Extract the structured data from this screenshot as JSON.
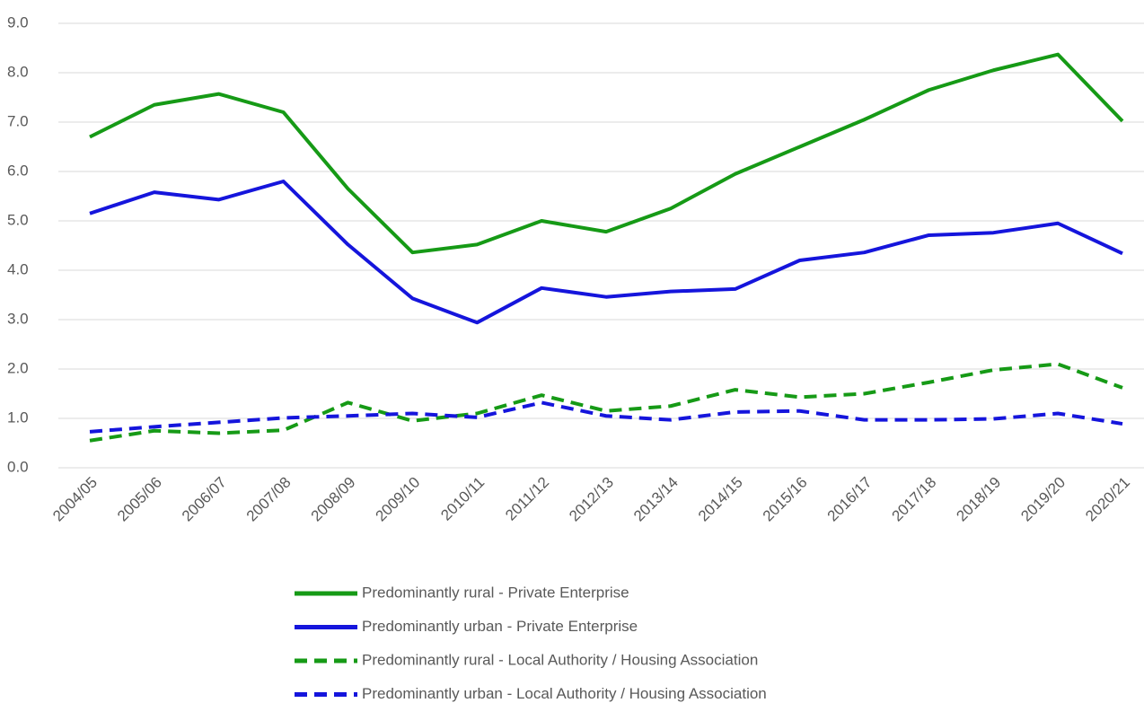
{
  "chart_data": {
    "type": "line",
    "categories": [
      "2004/05",
      "2005/06",
      "2006/07",
      "2007/08",
      "2008/09",
      "2009/10",
      "2010/11",
      "2011/12",
      "2012/13",
      "2013/14",
      "2014/15",
      "2015/16",
      "2016/17",
      "2017/18",
      "2018/19",
      "2019/20",
      "2020/21"
    ],
    "series": [
      {
        "name": "Predominantly rural - Private Enterprise",
        "color": "#169a16",
        "style": "solid",
        "values": [
          6.7,
          7.35,
          7.57,
          7.2,
          5.65,
          4.36,
          4.52,
          5.0,
          4.78,
          5.25,
          5.95,
          6.5,
          7.05,
          7.65,
          8.05,
          8.37,
          7.02
        ]
      },
      {
        "name": "Predominantly urban - Private Enterprise",
        "color": "#1515dc",
        "style": "solid",
        "values": [
          5.15,
          5.58,
          5.43,
          5.8,
          4.52,
          3.43,
          2.94,
          3.64,
          3.46,
          3.57,
          3.62,
          4.2,
          4.36,
          4.71,
          4.76,
          4.95,
          4.34
        ]
      },
      {
        "name": "Predominantly rural - Local Authority / Housing Association",
        "color": "#169a16",
        "style": "dashed",
        "values": [
          0.55,
          0.75,
          0.7,
          0.76,
          1.32,
          0.95,
          1.1,
          1.47,
          1.15,
          1.25,
          1.58,
          1.43,
          1.5,
          1.73,
          1.98,
          2.1,
          1.62
        ]
      },
      {
        "name": "Predominantly urban - Local Authority / Housing Association",
        "color": "#1515dc",
        "style": "dashed",
        "values": [
          0.73,
          0.83,
          0.92,
          1.01,
          1.05,
          1.1,
          1.02,
          1.32,
          1.05,
          0.97,
          1.13,
          1.15,
          0.97,
          0.97,
          0.99,
          1.1,
          0.89
        ]
      }
    ],
    "ylim": [
      0,
      9
    ],
    "yticks": [
      {
        "value": 0,
        "label": "0.0"
      },
      {
        "value": 1,
        "label": "1.0"
      },
      {
        "value": 2,
        "label": "2.0"
      },
      {
        "value": 3,
        "label": "3.0"
      },
      {
        "value": 4,
        "label": "4.0"
      },
      {
        "value": 5,
        "label": "5.0"
      },
      {
        "value": 6,
        "label": "6.0"
      },
      {
        "value": 7,
        "label": "7.0"
      },
      {
        "value": 8,
        "label": "8.0"
      },
      {
        "value": 9,
        "label": "9.0"
      }
    ],
    "grid": true,
    "legend": "bottom"
  }
}
